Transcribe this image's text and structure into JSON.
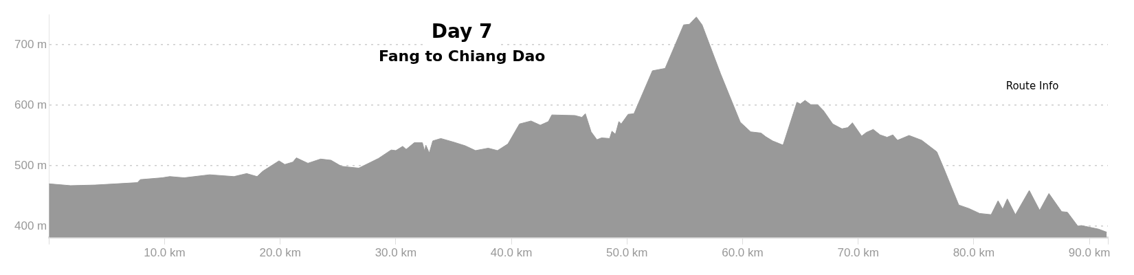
{
  "chart_data": {
    "type": "area",
    "title": "Day 7",
    "subtitle": "Fang to Chiang Dao",
    "annotations": [
      "Route Info"
    ],
    "color": "#999999",
    "grid": "y",
    "x": [
      0,
      1.87,
      4.0,
      7.66,
      7.9,
      9.8,
      10.45,
      11.7,
      13.9,
      16.0,
      17.1,
      18.0,
      18.5,
      19.9,
      20.4,
      21.1,
      21.4,
      22.4,
      23.5,
      24.4,
      25.3,
      26.8,
      28.5,
      29.6,
      30.0,
      30.6,
      30.9,
      31.6,
      32.3,
      32.5,
      32.6,
      32.9,
      33.2,
      33.9,
      35.0,
      36.0,
      36.9,
      38.0,
      38.8,
      39.7,
      40.7,
      41.7,
      42.5,
      43.2,
      43.5,
      45.5,
      46.1,
      46.4,
      46.9,
      47.4,
      47.8,
      48.5,
      48.7,
      49.0,
      49.3,
      49.5,
      50.1,
      50.6,
      52.2,
      53.3,
      54.9,
      55.4,
      56.0,
      56.5,
      58.1,
      59.8,
      60.7,
      61.6,
      62.0,
      62.6,
      63.5,
      64.7,
      65.0,
      65.4,
      65.9,
      66.5,
      67.0,
      67.8,
      68.6,
      69.1,
      69.5,
      70.3,
      70.7,
      71.3,
      71.9,
      72.5,
      73.0,
      73.4,
      74.4,
      75.5,
      76.8,
      77.4,
      78.7,
      79.6,
      80.5,
      81.5,
      82.1,
      82.5,
      82.9,
      83.6,
      84.8,
      85.7,
      86.5,
      87.6,
      88.1,
      89.0,
      89.3,
      90.8,
      91.5
    ],
    "values": [
      470,
      467,
      468,
      472,
      477,
      480,
      482,
      480,
      485,
      482,
      487,
      482,
      491,
      508,
      502,
      506,
      513,
      504,
      511,
      509,
      499,
      496,
      512,
      526,
      525,
      532,
      527,
      538,
      538,
      524,
      534,
      521,
      541,
      545,
      539,
      533,
      525,
      529,
      525,
      536,
      569,
      574,
      567,
      573,
      584,
      583,
      580,
      586,
      556,
      543,
      546,
      545,
      557,
      552,
      573,
      569,
      585,
      586,
      657,
      661,
      733,
      734,
      746,
      733,
      652,
      572,
      556,
      554,
      548,
      541,
      534,
      605,
      602,
      608,
      601,
      601,
      591,
      569,
      561,
      563,
      571,
      549,
      555,
      560,
      551,
      547,
      551,
      542,
      550,
      542,
      523,
      496,
      435,
      429,
      421,
      419,
      442,
      428,
      445,
      419,
      459,
      426,
      454,
      424,
      423,
      400,
      401,
      395,
      390
    ],
    "xlim": [
      0,
      91.6
    ],
    "xticks": [
      {
        "value": 0,
        "label": null
      },
      {
        "value": 10,
        "label": "10.0 km"
      },
      {
        "value": 20,
        "label": "20.0 km"
      },
      {
        "value": 30,
        "label": "30.0 km"
      },
      {
        "value": 40,
        "label": "40.0 km"
      },
      {
        "value": 50,
        "label": "50.0 km"
      },
      {
        "value": 60,
        "label": "60.0 km"
      },
      {
        "value": 70,
        "label": "70.0 km"
      },
      {
        "value": 80,
        "label": "80.0 km"
      },
      {
        "value": 90,
        "label": "90.0 km"
      },
      {
        "value": 91.6,
        "label": null
      }
    ],
    "ylim": [
      381,
      750
    ],
    "yticks": [
      {
        "value": 400,
        "label": "400 m"
      },
      {
        "value": 500,
        "label": "500 m"
      },
      {
        "value": 600,
        "label": "600 m"
      },
      {
        "value": 700,
        "label": "700 m"
      }
    ]
  }
}
